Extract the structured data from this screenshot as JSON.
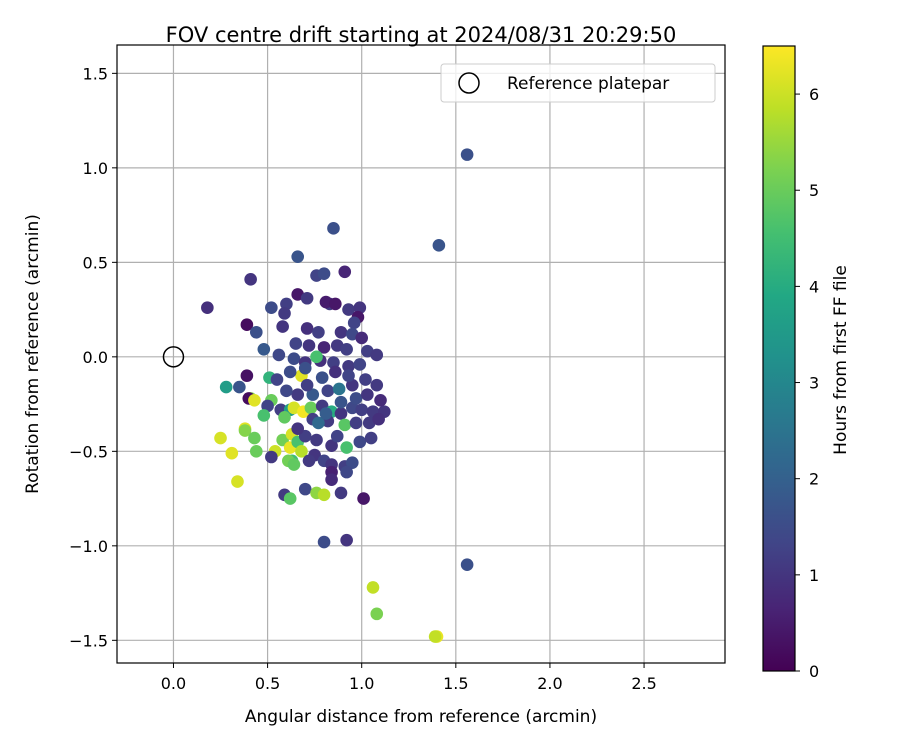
{
  "chart_data": {
    "type": "scatter",
    "title": "FOV centre drift starting at 2024/08/31 20:29:50",
    "xlabel": "Angular distance from reference (arcmin)",
    "ylabel": "Rotation from reference (arcmin)",
    "xlim": [
      -0.3,
      2.93
    ],
    "ylim": [
      -1.62,
      1.65
    ],
    "xticks": [
      0.0,
      0.5,
      1.0,
      1.5,
      2.0,
      2.5
    ],
    "xtick_labels": [
      "0.0",
      "0.5",
      "1.0",
      "1.5",
      "2.0",
      "2.5"
    ],
    "yticks": [
      -1.5,
      -1.0,
      -0.5,
      0.0,
      0.5,
      1.0,
      1.5
    ],
    "ytick_labels": [
      "−1.5",
      "−1.0",
      "−0.5",
      "0.0",
      "0.5",
      "1.0",
      "1.5"
    ],
    "grid": true,
    "legend": {
      "position": "top-right",
      "entries": [
        "Reference platepar"
      ]
    },
    "reference_point": {
      "x": 0.0,
      "y": 0.0,
      "marker": "hollow-circle"
    },
    "colorbar": {
      "label": "Hours from first FF file",
      "colormap": "viridis",
      "range": [
        0,
        6.5
      ],
      "ticks": [
        0,
        1,
        2,
        3,
        4,
        5,
        6
      ],
      "tick_labels": [
        "0",
        "1",
        "2",
        "3",
        "4",
        "5",
        "6"
      ]
    },
    "points": [
      [
        1.56,
        1.07,
        1.6
      ],
      [
        1.41,
        0.59,
        1.7
      ],
      [
        0.85,
        0.68,
        1.6
      ],
      [
        0.66,
        0.53,
        1.7
      ],
      [
        0.41,
        0.41,
        1.0
      ],
      [
        0.18,
        0.26,
        0.9
      ],
      [
        0.91,
        0.45,
        0.7
      ],
      [
        0.76,
        0.43,
        1.3
      ],
      [
        0.8,
        0.44,
        1.5
      ],
      [
        0.66,
        0.33,
        0.4
      ],
      [
        0.71,
        0.31,
        1.1
      ],
      [
        0.6,
        0.28,
        1.2
      ],
      [
        0.52,
        0.26,
        1.5
      ],
      [
        0.59,
        0.23,
        1.1
      ],
      [
        0.83,
        0.28,
        1.1
      ],
      [
        0.81,
        0.29,
        0.5
      ],
      [
        0.86,
        0.28,
        0.4
      ],
      [
        0.93,
        0.25,
        1.1
      ],
      [
        0.99,
        0.26,
        1.0
      ],
      [
        0.98,
        0.21,
        0.4
      ],
      [
        0.96,
        0.18,
        1.3
      ],
      [
        0.39,
        0.17,
        0.2
      ],
      [
        0.44,
        0.13,
        1.6
      ],
      [
        0.58,
        0.16,
        1.0
      ],
      [
        0.71,
        0.15,
        0.9
      ],
      [
        0.77,
        0.13,
        1.2
      ],
      [
        0.89,
        0.13,
        1.0
      ],
      [
        0.95,
        0.12,
        1.4
      ],
      [
        1.0,
        0.1,
        0.8
      ],
      [
        0.65,
        0.07,
        1.3
      ],
      [
        0.72,
        0.06,
        1.0
      ],
      [
        0.8,
        0.05,
        0.7
      ],
      [
        0.87,
        0.06,
        1.1
      ],
      [
        0.92,
        0.04,
        1.2
      ],
      [
        1.03,
        0.03,
        1.2
      ],
      [
        1.08,
        0.01,
        1.1
      ],
      [
        0.48,
        0.04,
        1.8
      ],
      [
        0.56,
        0.01,
        1.4
      ],
      [
        0.64,
        -0.01,
        1.5
      ],
      [
        0.7,
        -0.03,
        1.0
      ],
      [
        0.78,
        -0.02,
        0.9
      ],
      [
        0.85,
        -0.03,
        1.2
      ],
      [
        0.93,
        -0.05,
        1.1
      ],
      [
        0.99,
        -0.04,
        1.3
      ],
      [
        0.76,
        0.0,
        4.6
      ],
      [
        0.68,
        -0.1,
        6.2
      ],
      [
        0.51,
        -0.11,
        4.2
      ],
      [
        0.39,
        -0.1,
        0.3
      ],
      [
        0.28,
        -0.16,
        3.6
      ],
      [
        0.35,
        -0.16,
        1.7
      ],
      [
        0.41,
        -0.22,
        5.3
      ],
      [
        0.4,
        -0.22,
        0.2
      ],
      [
        0.43,
        -0.23,
        6.2
      ],
      [
        0.52,
        -0.23,
        5.0
      ],
      [
        0.5,
        -0.26,
        1.3
      ],
      [
        0.57,
        -0.28,
        1.2
      ],
      [
        0.62,
        -0.28,
        3.6
      ],
      [
        0.64,
        -0.27,
        6.1
      ],
      [
        0.69,
        -0.29,
        6.4
      ],
      [
        0.73,
        -0.27,
        5.0
      ],
      [
        0.79,
        -0.26,
        1.1
      ],
      [
        0.84,
        -0.29,
        4.0
      ],
      [
        0.89,
        -0.3,
        1.0
      ],
      [
        0.95,
        -0.27,
        1.4
      ],
      [
        1.0,
        -0.28,
        1.2
      ],
      [
        1.06,
        -0.29,
        1.1
      ],
      [
        1.12,
        -0.29,
        1.0
      ],
      [
        0.48,
        -0.31,
        4.6
      ],
      [
        0.59,
        -0.32,
        4.9
      ],
      [
        0.74,
        -0.33,
        1.2
      ],
      [
        0.82,
        -0.34,
        1.1
      ],
      [
        0.91,
        -0.36,
        4.8
      ],
      [
        0.97,
        -0.35,
        1.2
      ],
      [
        1.04,
        -0.35,
        1.1
      ],
      [
        1.09,
        -0.33,
        0.9
      ],
      [
        0.38,
        -0.38,
        6.2
      ],
      [
        0.38,
        -0.39,
        5.3
      ],
      [
        0.43,
        -0.43,
        5.0
      ],
      [
        0.25,
        -0.43,
        6.1
      ],
      [
        0.31,
        -0.51,
        6.2
      ],
      [
        0.34,
        -0.66,
        6.1
      ],
      [
        0.44,
        -0.5,
        5.0
      ],
      [
        0.54,
        -0.5,
        6.0
      ],
      [
        0.52,
        -0.53,
        1.1
      ],
      [
        0.58,
        -0.44,
        5.1
      ],
      [
        0.62,
        -0.48,
        6.3
      ],
      [
        0.63,
        -0.41,
        6.1
      ],
      [
        0.66,
        -0.45,
        4.6
      ],
      [
        0.68,
        -0.5,
        5.8
      ],
      [
        0.63,
        -0.55,
        4.5
      ],
      [
        0.61,
        -0.55,
        5.1
      ],
      [
        0.64,
        -0.57,
        4.9
      ],
      [
        0.7,
        -0.42,
        1.2
      ],
      [
        0.76,
        -0.44,
        1.1
      ],
      [
        0.84,
        -0.47,
        1.0
      ],
      [
        0.87,
        -0.42,
        1.3
      ],
      [
        0.92,
        -0.48,
        4.6
      ],
      [
        0.99,
        -0.45,
        1.4
      ],
      [
        1.05,
        -0.43,
        1.2
      ],
      [
        0.75,
        -0.52,
        1.0
      ],
      [
        0.8,
        -0.55,
        1.3
      ],
      [
        0.84,
        -0.57,
        1.0
      ],
      [
        0.91,
        -0.58,
        1.2
      ],
      [
        0.95,
        -0.56,
        1.5
      ],
      [
        0.72,
        -0.55,
        1.1
      ],
      [
        0.84,
        -0.61,
        0.6
      ],
      [
        0.92,
        -0.61,
        1.4
      ],
      [
        0.84,
        -0.65,
        0.8
      ],
      [
        0.7,
        -0.7,
        1.4
      ],
      [
        0.59,
        -0.73,
        1.1
      ],
      [
        0.62,
        -0.75,
        4.8
      ],
      [
        0.76,
        -0.72,
        5.4
      ],
      [
        0.8,
        -0.73,
        5.8
      ],
      [
        0.89,
        -0.72,
        1.1
      ],
      [
        1.01,
        -0.75,
        0.4
      ],
      [
        0.8,
        -0.98,
        1.5
      ],
      [
        0.92,
        -0.97,
        1.0
      ],
      [
        1.56,
        -1.1,
        1.6
      ],
      [
        1.06,
        -1.22,
        5.9
      ],
      [
        1.08,
        -1.36,
        5.2
      ],
      [
        1.4,
        -1.48,
        6.3
      ],
      [
        1.39,
        -1.48,
        5.9
      ],
      [
        0.74,
        -0.2,
        1.8
      ],
      [
        0.82,
        -0.18,
        1.3
      ],
      [
        0.88,
        -0.17,
        2.5
      ],
      [
        0.95,
        -0.15,
        1.0
      ],
      [
        1.02,
        -0.12,
        1.2
      ],
      [
        1.08,
        -0.15,
        1.1
      ],
      [
        0.79,
        -0.11,
        1.6
      ],
      [
        0.86,
        -0.08,
        0.9
      ],
      [
        0.93,
        -0.1,
        1.3
      ],
      [
        0.71,
        -0.15,
        1.2
      ],
      [
        0.66,
        -0.2,
        1.1
      ],
      [
        0.6,
        -0.18,
        1.4
      ],
      [
        0.55,
        -0.12,
        1.3
      ],
      [
        0.62,
        -0.08,
        1.5
      ],
      [
        0.7,
        -0.06,
        1.6
      ],
      [
        0.77,
        -0.35,
        2.2
      ],
      [
        0.81,
        -0.3,
        1.9
      ],
      [
        0.89,
        -0.24,
        1.7
      ],
      [
        0.97,
        -0.22,
        1.5
      ],
      [
        1.03,
        -0.2,
        1.0
      ],
      [
        1.1,
        -0.23,
        0.8
      ],
      [
        0.66,
        -0.38,
        1.0
      ]
    ]
  }
}
